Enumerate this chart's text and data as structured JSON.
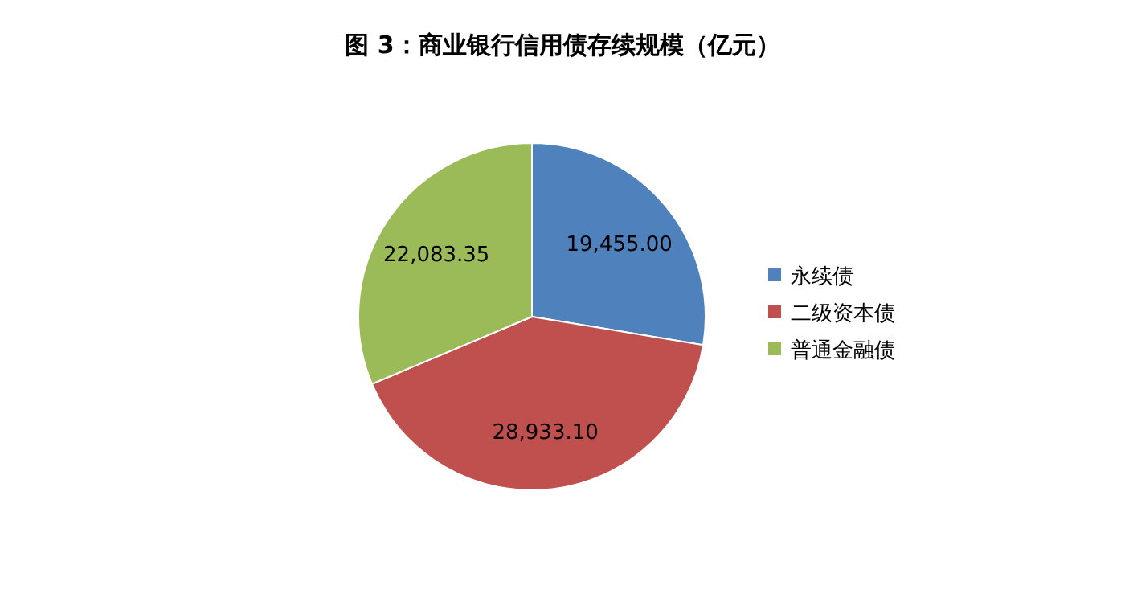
{
  "chart_data": {
    "type": "pie",
    "title": "图 3：商业银行信用债存续规模（亿元）",
    "categories": [
      "永续债",
      "二级资本债",
      "普通金融债"
    ],
    "values": [
      19455.0,
      28933.1,
      22083.35
    ],
    "value_labels": [
      "19,455.00",
      "28,933.10",
      "22,083.35"
    ],
    "colors": [
      "#4f81bd",
      "#c0504d",
      "#9bbb59"
    ],
    "legend": "right"
  }
}
